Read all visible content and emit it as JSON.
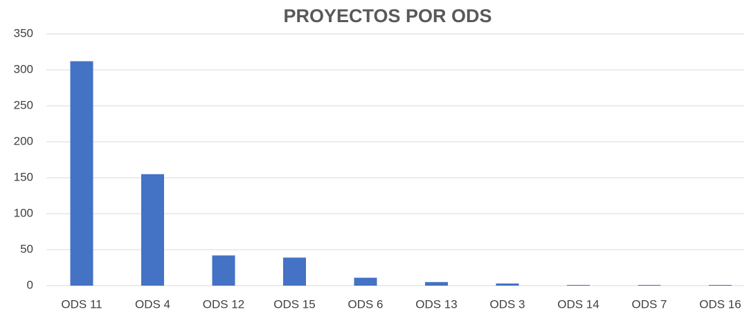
{
  "chart_data": {
    "type": "bar",
    "title": "PROYECTOS POR ODS",
    "categories": [
      "ODS 11",
      "ODS 4",
      "ODS 12",
      "ODS 15",
      "ODS 6",
      "ODS 13",
      "ODS 3",
      "ODS 14",
      "ODS 7",
      "ODS 16"
    ],
    "values": [
      312,
      155,
      42,
      39,
      11,
      5,
      3,
      1,
      1,
      1
    ],
    "color": "#4472c4",
    "ylim": [
      0,
      350
    ],
    "yticks": [
      0,
      50,
      100,
      150,
      200,
      250,
      300,
      350
    ],
    "grid": true
  }
}
